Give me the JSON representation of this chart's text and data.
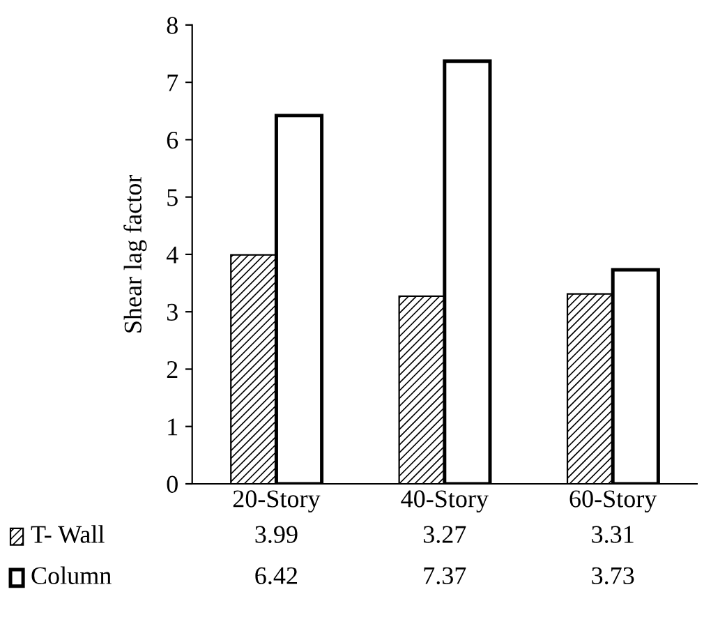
{
  "chart_data": {
    "type": "bar",
    "ylabel": "Shear lag factor",
    "categories": [
      "20-Story",
      "40-Story",
      "60-Story"
    ],
    "series": [
      {
        "name": "T- Wall",
        "color": "#000000",
        "values": [
          3.99,
          3.27,
          3.31
        ]
      },
      {
        "name": "Column",
        "color": "#ffffff",
        "values": [
          6.42,
          7.37,
          3.73
        ]
      }
    ],
    "ylim": [
      0,
      8
    ],
    "yticks": [
      0,
      1,
      2,
      3,
      4,
      5,
      6,
      7,
      8
    ],
    "grid": false,
    "legend": "left",
    "data_labels": true
  }
}
